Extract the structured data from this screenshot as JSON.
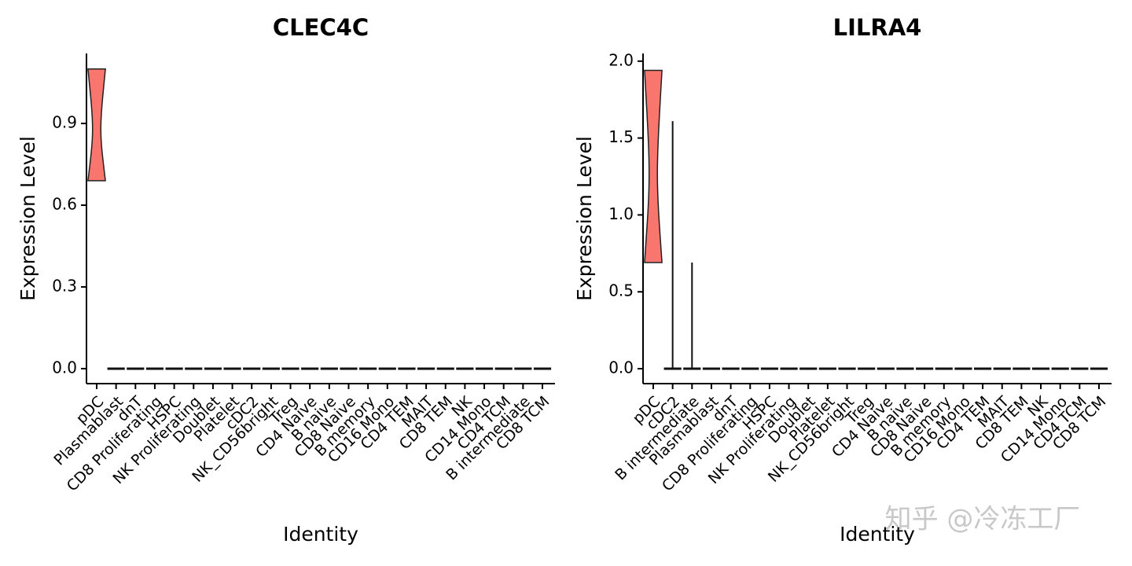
{
  "chart_data": [
    {
      "type": "violin",
      "title": "CLEC4C",
      "x_label": "Identity",
      "y_label": "Expression Level",
      "color": "#f8766d",
      "categories": [
        "pDC",
        "Plasmablast",
        "dnT",
        "CD8 Proliferating",
        "HSPC",
        "NK Proliferating",
        "Doublet",
        "Platelet",
        "cDC2",
        "NK_CD56bright",
        "Treg",
        "CD4 Naive",
        "B naive",
        "CD8 Naive",
        "B memory",
        "CD16 Mono",
        "CD4 TEM",
        "MAIT",
        "CD8 TEM",
        "NK",
        "CD14 Mono",
        "CD4 TCM",
        "B intermediate",
        "CD8 TCM"
      ],
      "min": [
        0.69,
        0,
        0,
        0,
        0,
        0,
        0,
        0,
        0,
        0,
        0,
        0,
        0,
        0,
        0,
        0,
        0,
        0,
        0,
        0,
        0,
        0,
        0,
        0
      ],
      "max": [
        1.1,
        0,
        0,
        0,
        0,
        0,
        0,
        0,
        0,
        0,
        0,
        0,
        0,
        0,
        0,
        0,
        0,
        0,
        0,
        0,
        0,
        0,
        0,
        0
      ],
      "ylim": [
        -0.055,
        1.157
      ],
      "yticks": [
        {
          "value": 0,
          "label": "0.0"
        },
        {
          "value": 0.3,
          "label": "0.3"
        },
        {
          "value": 0.6,
          "label": "0.6"
        },
        {
          "value": 0.9,
          "label": "0.9"
        }
      ]
    },
    {
      "type": "violin",
      "title": "LILRA4",
      "x_label": "Identity",
      "y_label": "Expression Level",
      "color": "#f8766d",
      "categories": [
        "pDC",
        "cDC2",
        "B intermediate",
        "Plasmablast",
        "dnT",
        "CD8 Proliferating",
        "HSPC",
        "NK Proliferating",
        "Doublet",
        "Platelet",
        "NK_CD56bright",
        "Treg",
        "CD4 Naive",
        "B naive",
        "CD8 Naive",
        "B memory",
        "CD16 Mono",
        "CD4 TEM",
        "MAIT",
        "CD8 TEM",
        "NK",
        "CD14 Mono",
        "CD4 TCM",
        "CD8 TCM"
      ],
      "min": [
        0.69,
        0,
        0,
        0,
        0,
        0,
        0,
        0,
        0,
        0,
        0,
        0,
        0,
        0,
        0,
        0,
        0,
        0,
        0,
        0,
        0,
        0,
        0,
        0
      ],
      "max": [
        1.94,
        1.61,
        0.69,
        0,
        0,
        0,
        0,
        0,
        0,
        0,
        0,
        0,
        0,
        0,
        0,
        0,
        0,
        0,
        0,
        0,
        0,
        0,
        0,
        0
      ],
      "ylim": [
        -0.097,
        2.05
      ],
      "yticks": [
        {
          "value": 0,
          "label": "0.0"
        },
        {
          "value": 0.5,
          "label": "0.5"
        },
        {
          "value": 1,
          "label": "1.0"
        },
        {
          "value": 1.5,
          "label": "1.5"
        },
        {
          "value": 2,
          "label": "2.0"
        }
      ]
    }
  ],
  "watermark": "知乎 @冷冻工厂"
}
